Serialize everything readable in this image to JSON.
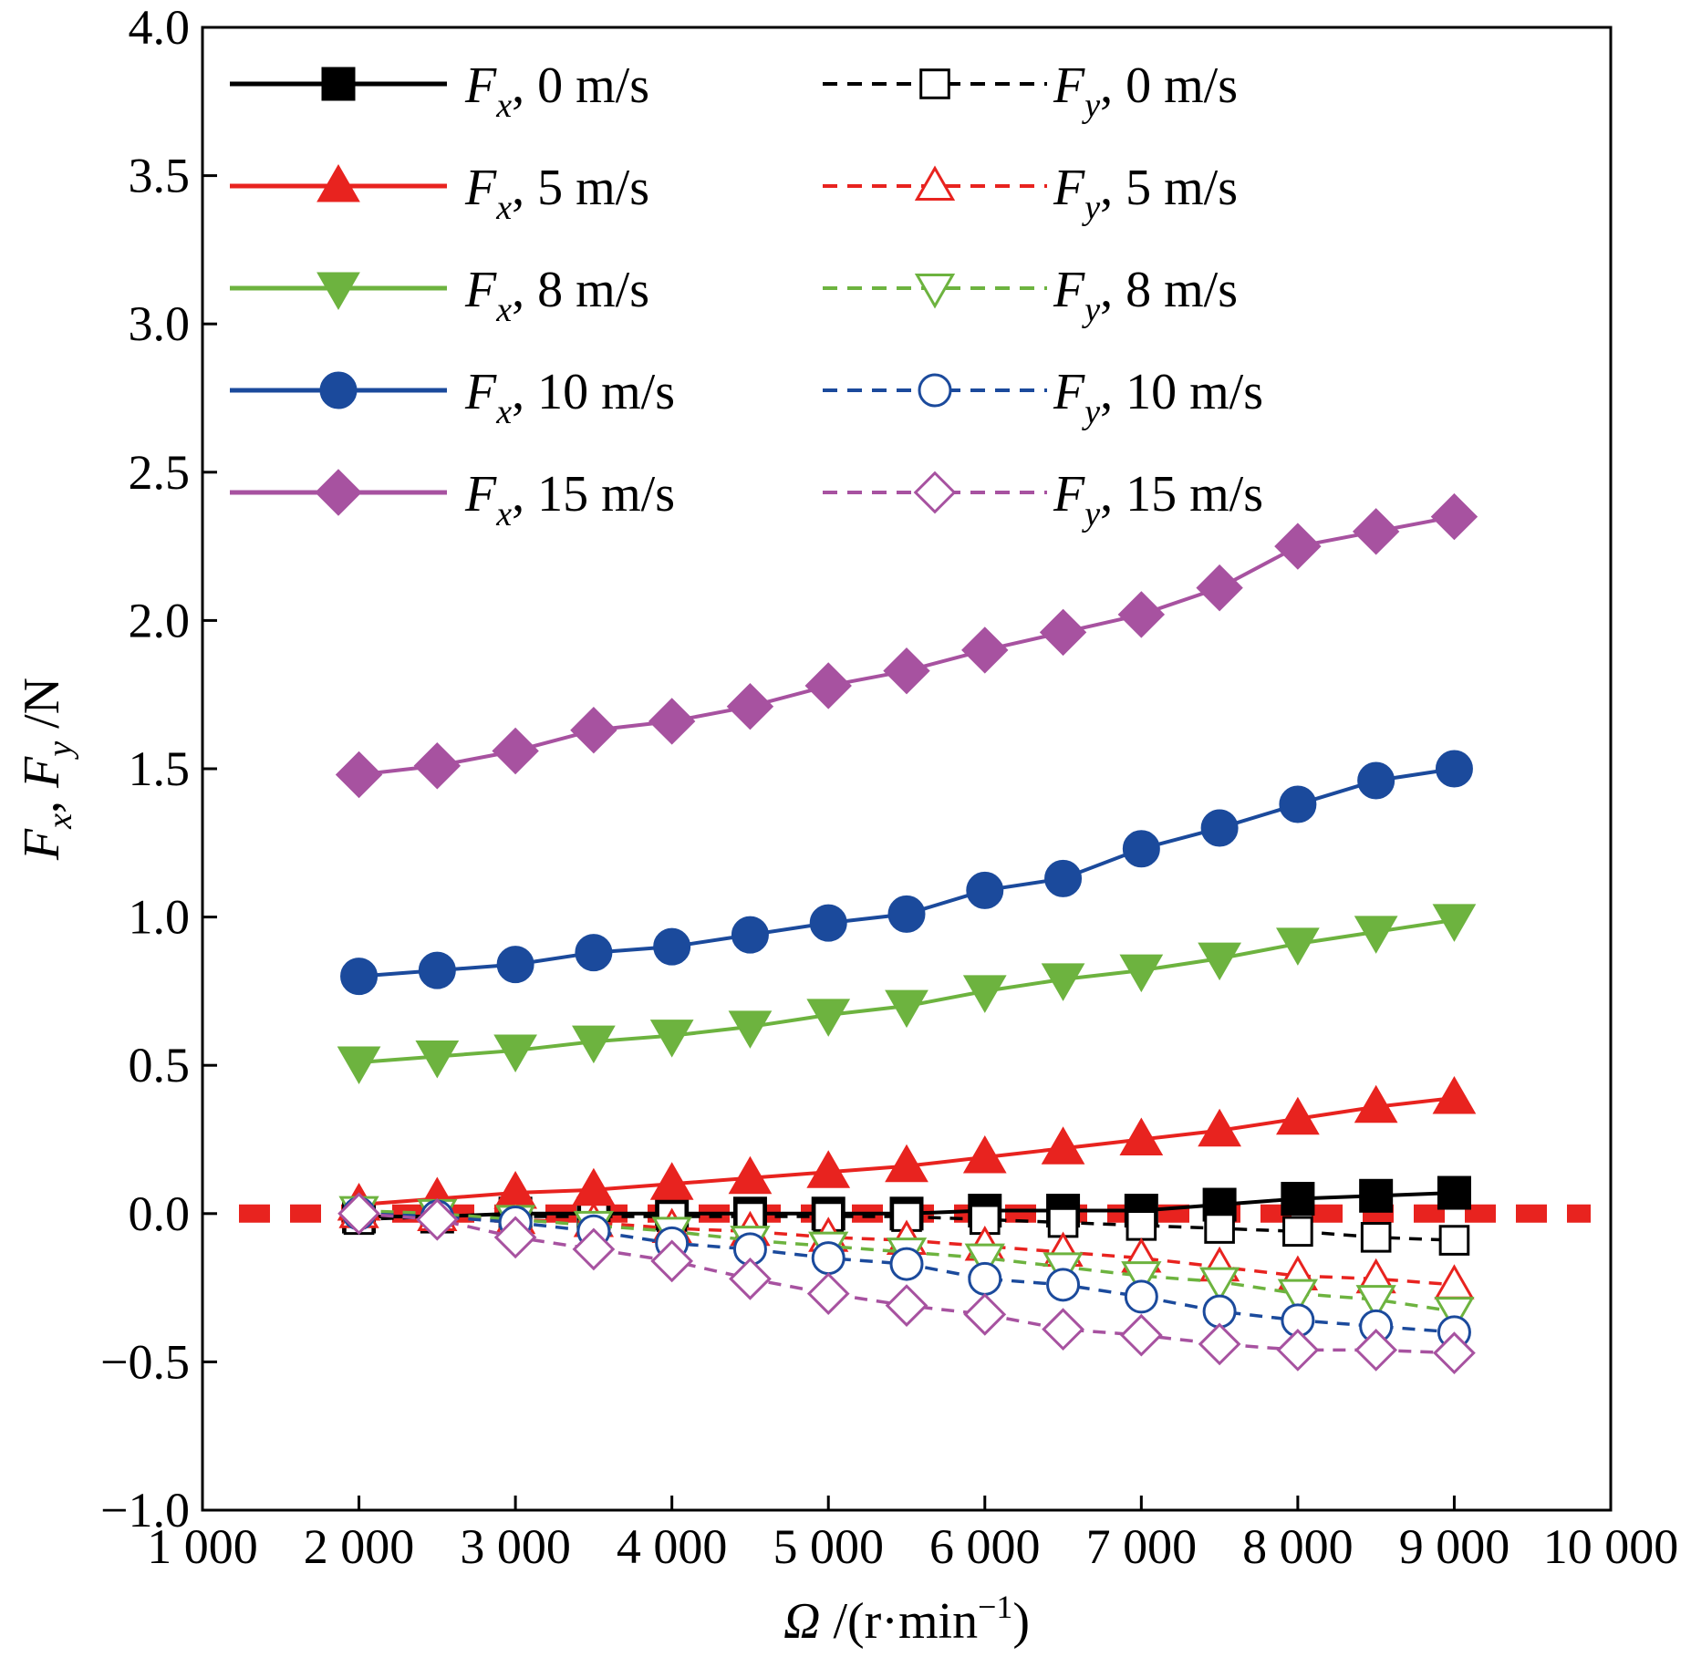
{
  "chart_data": {
    "type": "line",
    "xlabel": {
      "symbol": "Ω",
      "rest": " /(r·min",
      "sup": "−1",
      "close": ")"
    },
    "ylabel": {
      "a": "F",
      "a_sub": "x",
      "sep": ", ",
      "b": "F",
      "b_sub": "y",
      "unit": " /N"
    },
    "xlim": [
      1000,
      10000
    ],
    "ylim": [
      -1.0,
      4.0
    ],
    "x_ticks": [
      1000,
      2000,
      3000,
      4000,
      5000,
      6000,
      7000,
      8000,
      9000,
      10000
    ],
    "x_tick_labels": [
      "1 000",
      "2 000",
      "3 000",
      "4 000",
      "5 000",
      "6 000",
      "7 000",
      "8 000",
      "9 000",
      "10 000"
    ],
    "y_ticks": [
      -1.0,
      -0.5,
      0.0,
      0.5,
      1.0,
      1.5,
      2.0,
      2.5,
      3.0,
      3.5,
      4.0
    ],
    "y_tick_labels": [
      "−1.0",
      "−0.5",
      "0.0",
      "0.5",
      "1.0",
      "1.5",
      "2.0",
      "2.5",
      "3.0",
      "3.5",
      "4.0"
    ],
    "grid": false,
    "legend_position": "top, two columns",
    "reference_line": {
      "y": 0.0,
      "color": "#e8231f",
      "style": "dashed"
    },
    "x": [
      2000,
      2500,
      3000,
      3500,
      4000,
      4500,
      5000,
      5500,
      6000,
      6500,
      7000,
      7500,
      8000,
      8500,
      9000
    ],
    "series": [
      {
        "symbol": "F",
        "sub": "x",
        "speed": ", 0 m/s",
        "color": "#000000",
        "dash": "solid",
        "marker": "square",
        "filled": true,
        "values": [
          -0.01,
          -0.01,
          0.0,
          0.0,
          0.0,
          0.0,
          0.0,
          0.0,
          0.01,
          0.01,
          0.01,
          0.03,
          0.05,
          0.06,
          0.07
        ]
      },
      {
        "symbol": "F",
        "sub": "y",
        "speed": ", 0 m/s",
        "color": "#000000",
        "dash": "dashed",
        "marker": "square",
        "filled": false,
        "values": [
          -0.02,
          -0.01,
          -0.01,
          -0.01,
          -0.01,
          -0.01,
          -0.01,
          -0.01,
          -0.02,
          -0.03,
          -0.04,
          -0.05,
          -0.06,
          -0.08,
          -0.09
        ]
      },
      {
        "symbol": "F",
        "sub": "x",
        "speed": ", 5 m/s",
        "color": "#e8231f",
        "dash": "solid",
        "marker": "triangle-up",
        "filled": true,
        "values": [
          0.03,
          0.05,
          0.07,
          0.08,
          0.1,
          0.12,
          0.14,
          0.16,
          0.19,
          0.22,
          0.25,
          0.28,
          0.32,
          0.36,
          0.39
        ]
      },
      {
        "symbol": "F",
        "sub": "y",
        "speed": ", 5 m/s",
        "color": "#e8231f",
        "dash": "dashed",
        "marker": "triangle-up",
        "filled": false,
        "values": [
          0.0,
          -0.01,
          -0.02,
          -0.03,
          -0.05,
          -0.06,
          -0.08,
          -0.09,
          -0.11,
          -0.13,
          -0.15,
          -0.18,
          -0.21,
          -0.22,
          -0.24
        ]
      },
      {
        "symbol": "F",
        "sub": "x",
        "speed": ", 8 m/s",
        "color": "#6db33f",
        "dash": "solid",
        "marker": "triangle-down",
        "filled": true,
        "values": [
          0.51,
          0.53,
          0.55,
          0.58,
          0.6,
          0.63,
          0.67,
          0.7,
          0.75,
          0.79,
          0.82,
          0.86,
          0.91,
          0.95,
          0.99
        ]
      },
      {
        "symbol": "F",
        "sub": "y",
        "speed": ", 8 m/s",
        "color": "#6db33f",
        "dash": "dashed",
        "marker": "triangle-down",
        "filled": false,
        "values": [
          0.01,
          0.0,
          -0.02,
          -0.04,
          -0.06,
          -0.09,
          -0.11,
          -0.13,
          -0.15,
          -0.18,
          -0.21,
          -0.23,
          -0.27,
          -0.29,
          -0.33
        ]
      },
      {
        "symbol": "F",
        "sub": "x",
        "speed": ", 10 m/s",
        "color": "#1b4a9c",
        "dash": "solid",
        "marker": "circle",
        "filled": true,
        "values": [
          0.8,
          0.82,
          0.84,
          0.88,
          0.9,
          0.94,
          0.98,
          1.01,
          1.09,
          1.13,
          1.23,
          1.3,
          1.38,
          1.46,
          1.5
        ]
      },
      {
        "symbol": "F",
        "sub": "y",
        "speed": ", 10 m/s",
        "color": "#1b4a9c",
        "dash": "dashed",
        "marker": "circle",
        "filled": false,
        "values": [
          0.0,
          -0.01,
          -0.03,
          -0.06,
          -0.1,
          -0.12,
          -0.15,
          -0.17,
          -0.22,
          -0.24,
          -0.28,
          -0.33,
          -0.36,
          -0.38,
          -0.4
        ]
      },
      {
        "symbol": "F",
        "sub": "x",
        "speed": ", 15 m/s",
        "color": "#a752a0",
        "dash": "solid",
        "marker": "diamond",
        "filled": true,
        "values": [
          1.48,
          1.51,
          1.56,
          1.63,
          1.66,
          1.71,
          1.78,
          1.83,
          1.9,
          1.96,
          2.02,
          2.11,
          2.25,
          2.3,
          2.35
        ]
      },
      {
        "symbol": "F",
        "sub": "y",
        "speed": ", 15 m/s",
        "color": "#a752a0",
        "dash": "dashed",
        "marker": "diamond",
        "filled": false,
        "values": [
          0.0,
          -0.02,
          -0.08,
          -0.12,
          -0.16,
          -0.22,
          -0.27,
          -0.31,
          -0.34,
          -0.39,
          -0.41,
          -0.44,
          -0.46,
          -0.46,
          -0.47
        ]
      }
    ]
  }
}
